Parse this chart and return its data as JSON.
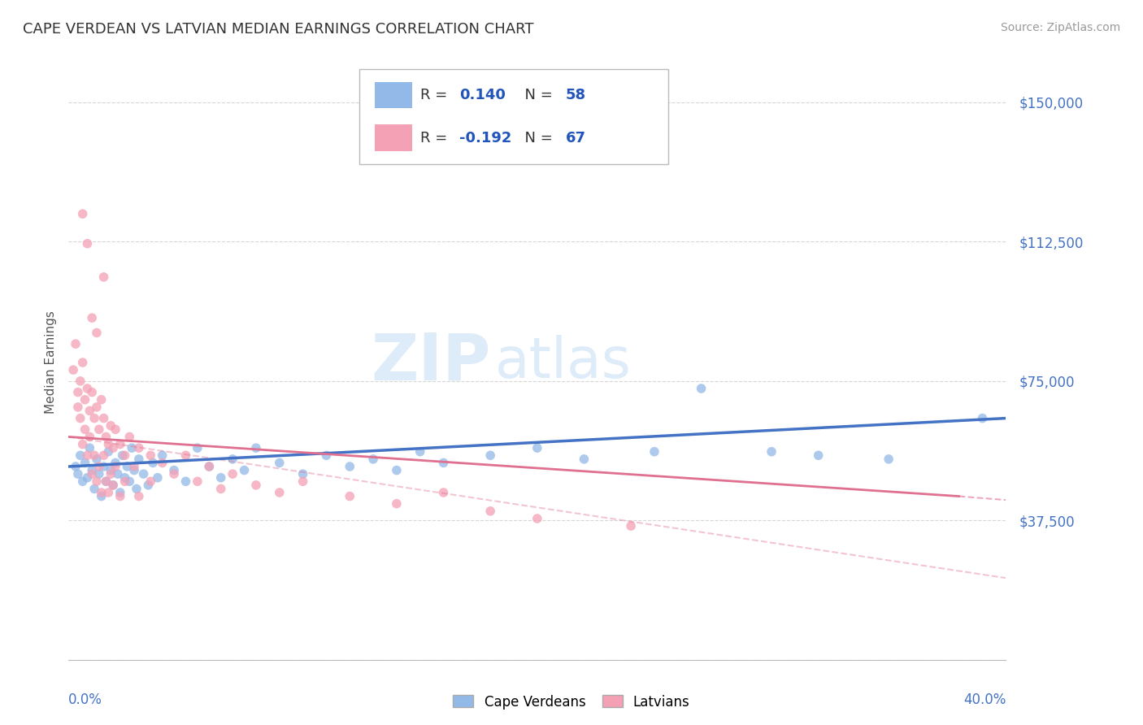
{
  "title": "CAPE VERDEAN VS LATVIAN MEDIAN EARNINGS CORRELATION CHART",
  "source": "Source: ZipAtlas.com",
  "ylabel": "Median Earnings",
  "y_ticks": [
    0,
    37500,
    75000,
    112500,
    150000
  ],
  "y_tick_labels": [
    "",
    "$37,500",
    "$75,000",
    "$112,500",
    "$150,000"
  ],
  "x_range": [
    0.0,
    0.4
  ],
  "y_range": [
    0,
    160000
  ],
  "cape_verdean_color": "#92b9e8",
  "latvian_color": "#f4a0b5",
  "cape_verdean_R": 0.14,
  "cape_verdean_N": 58,
  "latvian_R": -0.192,
  "latvian_N": 67,
  "trend_blue_color": "#4472c4",
  "trend_pink_color": "#e07090",
  "watermark_zip": "ZIP",
  "watermark_atlas": "atlas",
  "background_color": "#ffffff",
  "grid_color": "#cccccc",
  "cape_verdean_points": [
    [
      0.003,
      52000
    ],
    [
      0.004,
      50000
    ],
    [
      0.005,
      55000
    ],
    [
      0.006,
      48000
    ],
    [
      0.007,
      53000
    ],
    [
      0.008,
      49000
    ],
    [
      0.009,
      57000
    ],
    [
      0.01,
      51000
    ],
    [
      0.011,
      46000
    ],
    [
      0.012,
      54000
    ],
    [
      0.013,
      50000
    ],
    [
      0.014,
      44000
    ],
    [
      0.015,
      52000
    ],
    [
      0.016,
      48000
    ],
    [
      0.017,
      56000
    ],
    [
      0.018,
      51000
    ],
    [
      0.019,
      47000
    ],
    [
      0.02,
      53000
    ],
    [
      0.021,
      50000
    ],
    [
      0.022,
      45000
    ],
    [
      0.023,
      55000
    ],
    [
      0.024,
      49000
    ],
    [
      0.025,
      52000
    ],
    [
      0.026,
      48000
    ],
    [
      0.027,
      57000
    ],
    [
      0.028,
      51000
    ],
    [
      0.029,
      46000
    ],
    [
      0.03,
      54000
    ],
    [
      0.032,
      50000
    ],
    [
      0.034,
      47000
    ],
    [
      0.036,
      53000
    ],
    [
      0.038,
      49000
    ],
    [
      0.04,
      55000
    ],
    [
      0.045,
      51000
    ],
    [
      0.05,
      48000
    ],
    [
      0.055,
      57000
    ],
    [
      0.06,
      52000
    ],
    [
      0.065,
      49000
    ],
    [
      0.07,
      54000
    ],
    [
      0.075,
      51000
    ],
    [
      0.08,
      57000
    ],
    [
      0.09,
      53000
    ],
    [
      0.1,
      50000
    ],
    [
      0.11,
      55000
    ],
    [
      0.12,
      52000
    ],
    [
      0.13,
      54000
    ],
    [
      0.14,
      51000
    ],
    [
      0.15,
      56000
    ],
    [
      0.16,
      53000
    ],
    [
      0.18,
      55000
    ],
    [
      0.2,
      57000
    ],
    [
      0.22,
      54000
    ],
    [
      0.25,
      56000
    ],
    [
      0.27,
      73000
    ],
    [
      0.3,
      56000
    ],
    [
      0.32,
      55000
    ],
    [
      0.35,
      54000
    ],
    [
      0.39,
      65000
    ]
  ],
  "latvian_points": [
    [
      0.002,
      78000
    ],
    [
      0.003,
      85000
    ],
    [
      0.004,
      72000
    ],
    [
      0.004,
      68000
    ],
    [
      0.005,
      75000
    ],
    [
      0.005,
      65000
    ],
    [
      0.006,
      80000
    ],
    [
      0.006,
      58000
    ],
    [
      0.007,
      70000
    ],
    [
      0.007,
      62000
    ],
    [
      0.008,
      73000
    ],
    [
      0.008,
      55000
    ],
    [
      0.009,
      67000
    ],
    [
      0.009,
      60000
    ],
    [
      0.01,
      72000
    ],
    [
      0.01,
      50000
    ],
    [
      0.011,
      65000
    ],
    [
      0.011,
      55000
    ],
    [
      0.012,
      68000
    ],
    [
      0.012,
      48000
    ],
    [
      0.013,
      62000
    ],
    [
      0.013,
      52000
    ],
    [
      0.014,
      70000
    ],
    [
      0.014,
      45000
    ],
    [
      0.015,
      65000
    ],
    [
      0.015,
      55000
    ],
    [
      0.016,
      60000
    ],
    [
      0.016,
      48000
    ],
    [
      0.017,
      58000
    ],
    [
      0.017,
      45000
    ],
    [
      0.018,
      63000
    ],
    [
      0.018,
      50000
    ],
    [
      0.019,
      57000
    ],
    [
      0.019,
      47000
    ],
    [
      0.02,
      62000
    ],
    [
      0.02,
      52000
    ],
    [
      0.022,
      58000
    ],
    [
      0.022,
      44000
    ],
    [
      0.024,
      55000
    ],
    [
      0.024,
      48000
    ],
    [
      0.026,
      60000
    ],
    [
      0.028,
      52000
    ],
    [
      0.03,
      57000
    ],
    [
      0.03,
      44000
    ],
    [
      0.035,
      55000
    ],
    [
      0.035,
      48000
    ],
    [
      0.04,
      53000
    ],
    [
      0.045,
      50000
    ],
    [
      0.05,
      55000
    ],
    [
      0.055,
      48000
    ],
    [
      0.06,
      52000
    ],
    [
      0.065,
      46000
    ],
    [
      0.07,
      50000
    ],
    [
      0.08,
      47000
    ],
    [
      0.09,
      45000
    ],
    [
      0.1,
      48000
    ],
    [
      0.12,
      44000
    ],
    [
      0.14,
      42000
    ],
    [
      0.16,
      45000
    ],
    [
      0.18,
      40000
    ],
    [
      0.2,
      38000
    ],
    [
      0.24,
      36000
    ],
    [
      0.006,
      120000
    ],
    [
      0.015,
      103000
    ],
    [
      0.01,
      92000
    ],
    [
      0.008,
      112000
    ],
    [
      0.012,
      88000
    ]
  ]
}
